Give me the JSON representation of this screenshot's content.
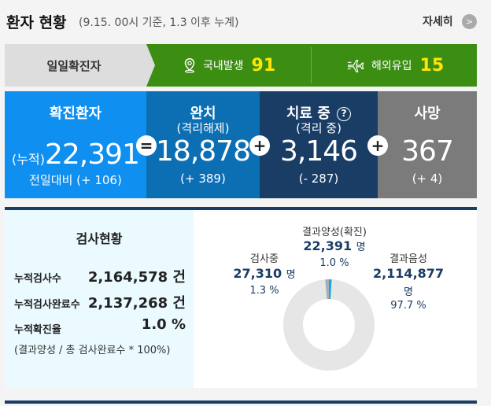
{
  "header": {
    "title": "환자 현황",
    "subtitle": "(9.15. 00시 기준, 1.3 이후 누계)",
    "more_label": "자세히",
    "more_icon": ">"
  },
  "daily": {
    "label": "일일확진자",
    "domestic_label": "국내발생",
    "domestic_value": "91",
    "overseas_label": "해외유입",
    "overseas_value": "15"
  },
  "status": {
    "confirmed": {
      "title": "확진환자",
      "cum_prefix": "(누적)",
      "value": "22,391",
      "delta": "전일대비 (+ 106)"
    },
    "released": {
      "title": "완치",
      "sub": "(격리해제)",
      "value": "18,878",
      "delta": "(+ 389)"
    },
    "treating": {
      "title": "치료 중",
      "help": "?",
      "sub": "(격리 중)",
      "value": "3,146",
      "delta": "(- 287)"
    },
    "deaths": {
      "title": "사망",
      "value": "367",
      "delta": "(+ 4)"
    },
    "op_equals": "=",
    "op_plus": "+"
  },
  "tests": {
    "title": "검사현황",
    "rows": [
      {
        "label": "누적검사수",
        "value": "2,164,578 건"
      },
      {
        "label": "누적검사완료수",
        "value": "2,137,268 건"
      },
      {
        "label": "누적확진율",
        "value": "1.0 %"
      }
    ],
    "note": "(결과양성 / 총 검사완료수 * 100%)",
    "chart_data": {
      "type": "pie",
      "categories": [
        "결과양성(확진)",
        "검사중",
        "결과음성"
      ],
      "values": [
        1.0,
        1.3,
        97.7
      ],
      "counts": [
        "22,391",
        "27,310",
        "2,114,877"
      ],
      "unit": "명",
      "colors": [
        "#1fa5e0",
        "#a4b0b8",
        "#e6e6e6"
      ]
    }
  }
}
